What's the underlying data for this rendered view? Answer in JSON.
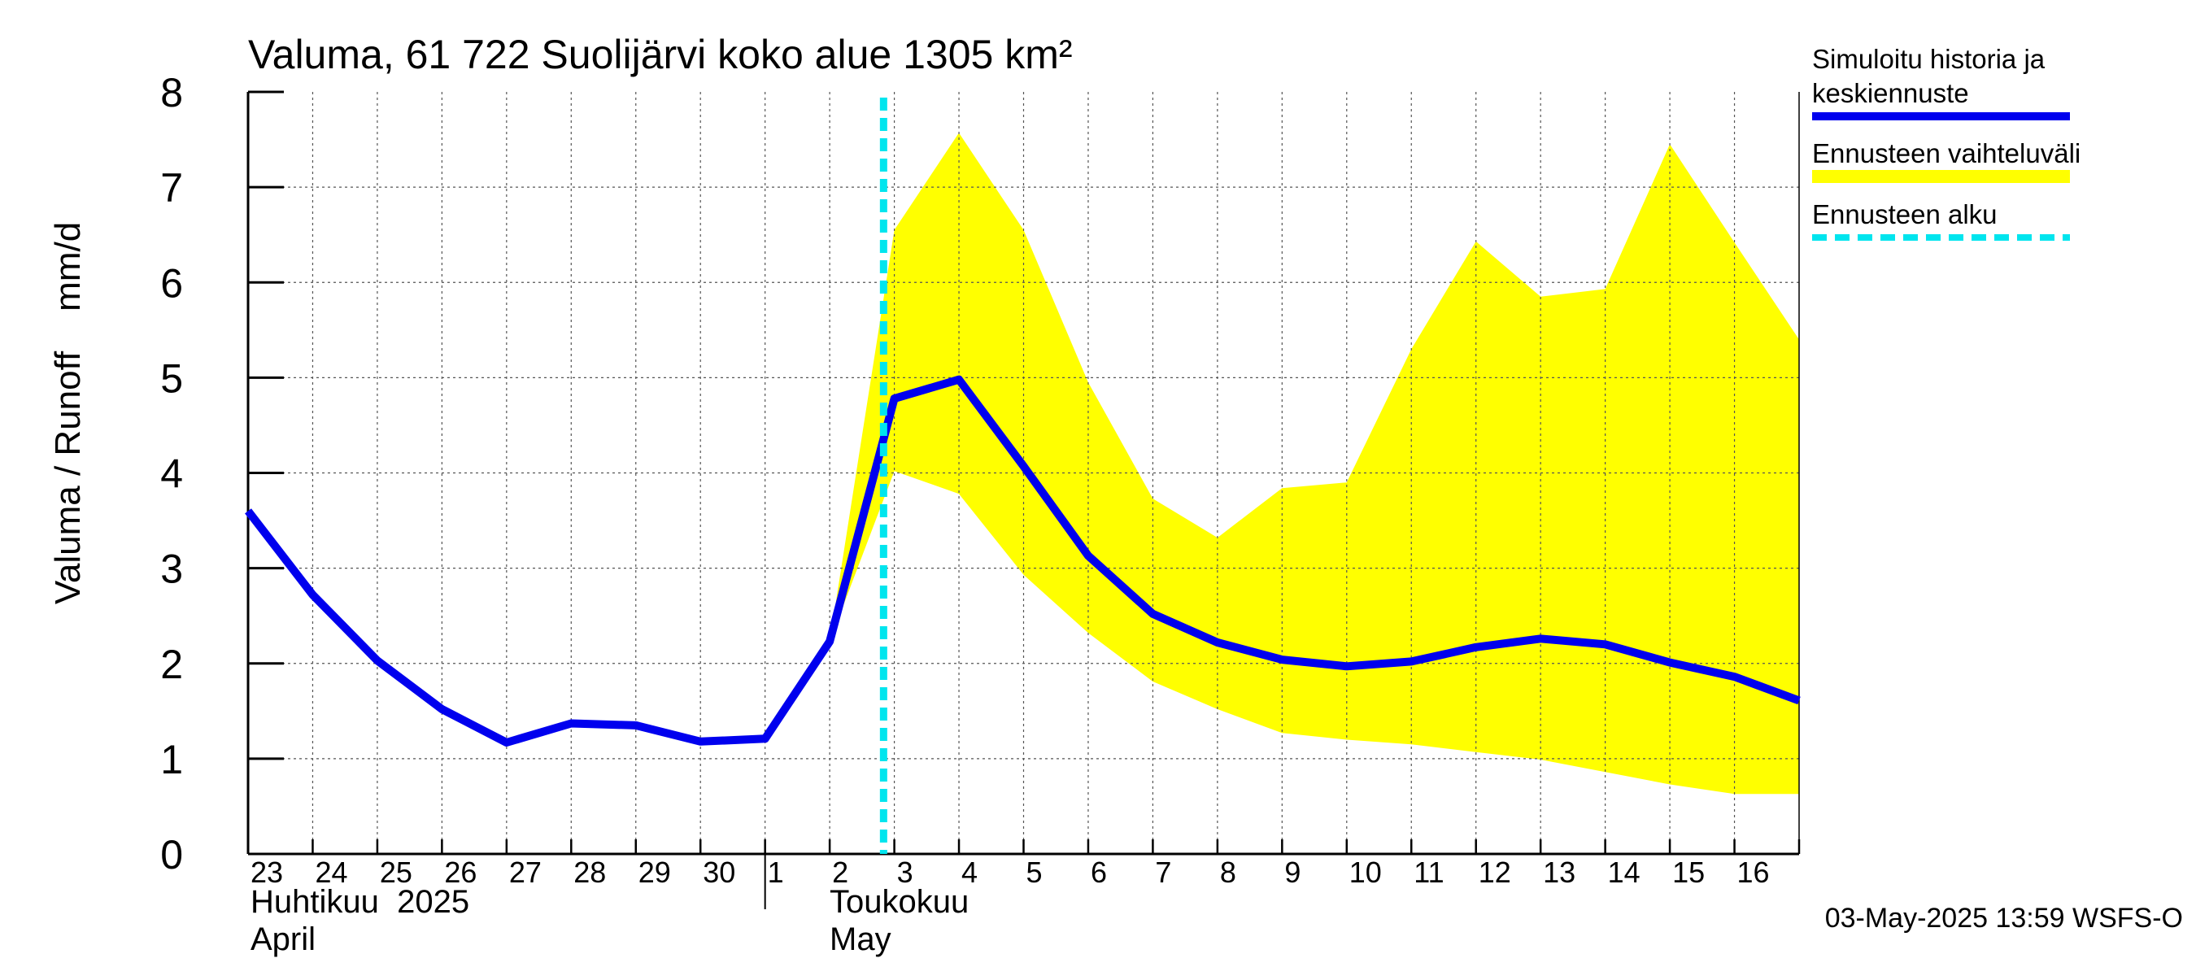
{
  "chart_data": {
    "type": "line",
    "title": "Valuma, 61 722 Suolijärvi koko alue 1305 km²",
    "ylabel": "Valuma / Runoff    mm/d",
    "xlabel": "",
    "ylim": [
      0,
      8
    ],
    "y_ticks": [
      "0",
      "1",
      "2",
      "3",
      "4",
      "5",
      "6",
      "7",
      "8"
    ],
    "grid": true,
    "legend_position": "top-right",
    "x_tick_labels": [
      "23",
      "24",
      "25",
      "26",
      "27",
      "28",
      "29",
      "30",
      "1",
      "2",
      "3",
      "4",
      "5",
      "6",
      "7",
      "8",
      "9",
      "10",
      "11",
      "12",
      "13",
      "14",
      "15",
      "16"
    ],
    "month_labels": [
      {
        "line1": "Huhtikuu  2025",
        "line2": "April"
      },
      {
        "line1": "Toukokuu",
        "line2": "May"
      }
    ],
    "x": [
      "2025-04-23",
      "2025-04-24",
      "2025-04-25",
      "2025-04-26",
      "2025-04-27",
      "2025-04-28",
      "2025-04-29",
      "2025-04-30",
      "2025-05-01",
      "2025-05-02",
      "2025-05-03",
      "2025-05-04",
      "2025-05-05",
      "2025-05-06",
      "2025-05-07",
      "2025-05-08",
      "2025-05-09",
      "2025-05-10",
      "2025-05-11",
      "2025-05-12",
      "2025-05-13",
      "2025-05-14",
      "2025-05-15",
      "2025-05-16",
      "2025-05-17"
    ],
    "series": [
      {
        "name": "Simuloitu historia ja keskiennuste",
        "color": "#0000ee",
        "values": [
          3.6,
          2.72,
          2.03,
          1.52,
          1.17,
          1.37,
          1.35,
          1.18,
          1.21,
          2.23,
          4.78,
          4.98,
          4.07,
          3.13,
          2.52,
          2.22,
          2.04,
          1.97,
          2.02,
          2.17,
          2.26,
          2.2,
          2.01,
          1.86,
          1.61
        ]
      }
    ],
    "range_band": {
      "name": "Ennusteen vaihteluväli",
      "color": "#ffff00",
      "x": [
        "2025-05-02",
        "2025-05-03",
        "2025-05-04",
        "2025-05-05",
        "2025-05-06",
        "2025-05-07",
        "2025-05-08",
        "2025-05-09",
        "2025-05-10",
        "2025-05-11",
        "2025-05-12",
        "2025-05-13",
        "2025-05-14",
        "2025-05-15",
        "2025-05-16",
        "2025-05-17"
      ],
      "upper": [
        2.23,
        6.55,
        7.57,
        6.55,
        4.95,
        3.73,
        3.32,
        3.84,
        3.9,
        5.3,
        6.43,
        5.85,
        5.93,
        7.45,
        6.42,
        5.4
      ],
      "lower": [
        2.23,
        4.02,
        3.78,
        2.93,
        2.32,
        1.81,
        1.52,
        1.27,
        1.2,
        1.15,
        1.07,
        0.99,
        0.86,
        0.73,
        0.63,
        0.63
      ]
    },
    "forecast_start": {
      "name": "Ennusteen alku",
      "x": "2025-05-02T20:00",
      "color": "#00e5ee"
    },
    "legend": [
      {
        "line1": "Simuloitu historia ja",
        "line2": "keskiennuste",
        "color": "#0000ee",
        "style": "solid"
      },
      {
        "line1": "Ennusteen vaihteluväli",
        "line2": "",
        "color": "#ffff00",
        "style": "band"
      },
      {
        "line1": "Ennusteen alku",
        "line2": "",
        "color": "#00e5ee",
        "style": "dashed"
      }
    ],
    "footer": "03-May-2025 13:59 WSFS-O"
  }
}
